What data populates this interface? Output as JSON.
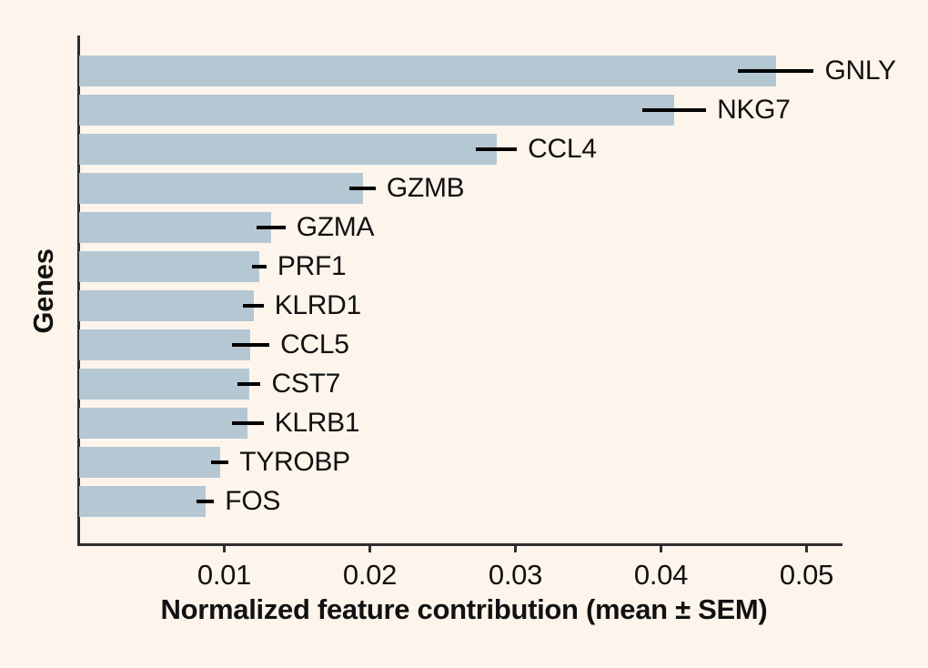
{
  "chart_data": {
    "type": "bar",
    "orientation": "horizontal",
    "title": "",
    "xlabel": "Normalized feature contribution (mean ± SEM)",
    "ylabel": "Genes",
    "categories": [
      "GNLY",
      "NKG7",
      "CCL4",
      "GZMB",
      "GZMA",
      "PRF1",
      "KLRD1",
      "CCL5",
      "CST7",
      "KLRB1",
      "TYROBP",
      "FOS"
    ],
    "values": [
      0.0479,
      0.0409,
      0.0287,
      0.0195,
      0.0132,
      0.0124,
      0.012,
      0.0118,
      0.0117,
      0.0116,
      0.0097,
      0.0087
    ],
    "sem": [
      0.0026,
      0.0022,
      0.0014,
      0.0009,
      0.001,
      0.0005,
      0.0007,
      0.0013,
      0.0008,
      0.0011,
      0.0006,
      0.0006
    ],
    "xlim": [
      0,
      0.0524
    ],
    "xticks": [
      0.01,
      0.02,
      0.03,
      0.04,
      0.05
    ],
    "xtick_labels": [
      "0.01",
      "0.02",
      "0.03",
      "0.04",
      "0.05"
    ],
    "grid": false,
    "legend": null,
    "colors": {
      "background": "#fdf5ec",
      "bar_fill": "#b5c7d3",
      "error_bar": "#000000",
      "axis_line": "#2e2e2e",
      "text": "#111111"
    }
  }
}
